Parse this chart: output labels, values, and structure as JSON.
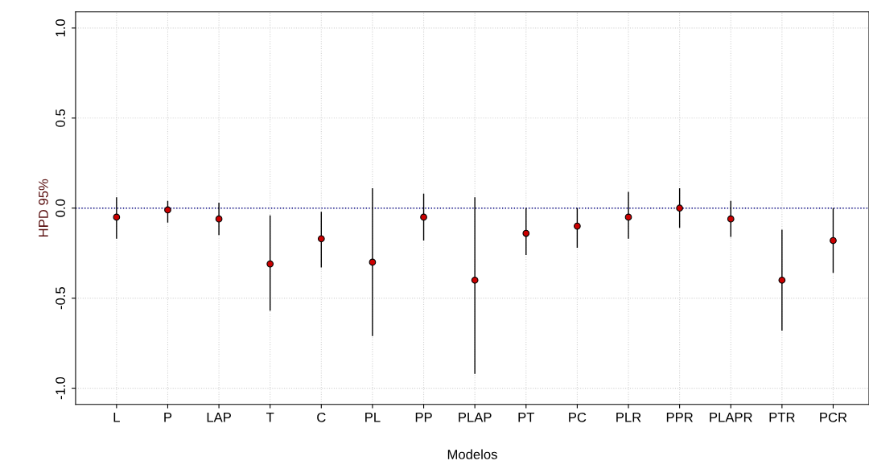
{
  "chart_data": {
    "type": "scatter",
    "xlabel": "Modelos",
    "ylabel": "HPD 95%",
    "categories": [
      "L",
      "P",
      "LAP",
      "T",
      "C",
      "PL",
      "PP",
      "PLAP",
      "PT",
      "PC",
      "PLR",
      "PPR",
      "PLAPR",
      "PTR",
      "PCR"
    ],
    "series": [
      {
        "color": "#cc0000",
        "values": [
          -0.05,
          -0.01,
          -0.06,
          -0.31,
          -0.17,
          -0.3,
          -0.05,
          -0.4,
          -0.14,
          -0.1,
          -0.05,
          0.0,
          -0.06,
          -0.4,
          -0.18
        ],
        "errors": [
          [
            -0.17,
            0.06
          ],
          [
            -0.08,
            0.04
          ],
          [
            -0.15,
            0.03
          ],
          [
            -0.57,
            -0.04
          ],
          [
            -0.33,
            -0.02
          ],
          [
            -0.71,
            0.11
          ],
          [
            -0.18,
            0.08
          ],
          [
            -0.92,
            0.06
          ],
          [
            -0.26,
            0.0
          ],
          [
            -0.22,
            0.0
          ],
          [
            -0.17,
            0.09
          ],
          [
            -0.11,
            0.11
          ],
          [
            -0.16,
            0.04
          ],
          [
            -0.68,
            -0.12
          ],
          [
            -0.36,
            0.0
          ]
        ]
      }
    ],
    "ylim": [
      -1.09,
      1.09
    ],
    "yticks": [
      {
        "value": -1.0,
        "label": "-1.0"
      },
      {
        "value": -0.5,
        "label": "-0.5"
      },
      {
        "value": 0.0,
        "label": "0.0"
      },
      {
        "value": 0.5,
        "label": "0.5"
      },
      {
        "value": 1.0,
        "label": "1.0"
      }
    ],
    "ref_lines": [
      {
        "axis": "y",
        "value": 0.0,
        "color": "#000080",
        "line_style": "dotted"
      }
    ],
    "grid": true,
    "marker": "circle"
  }
}
